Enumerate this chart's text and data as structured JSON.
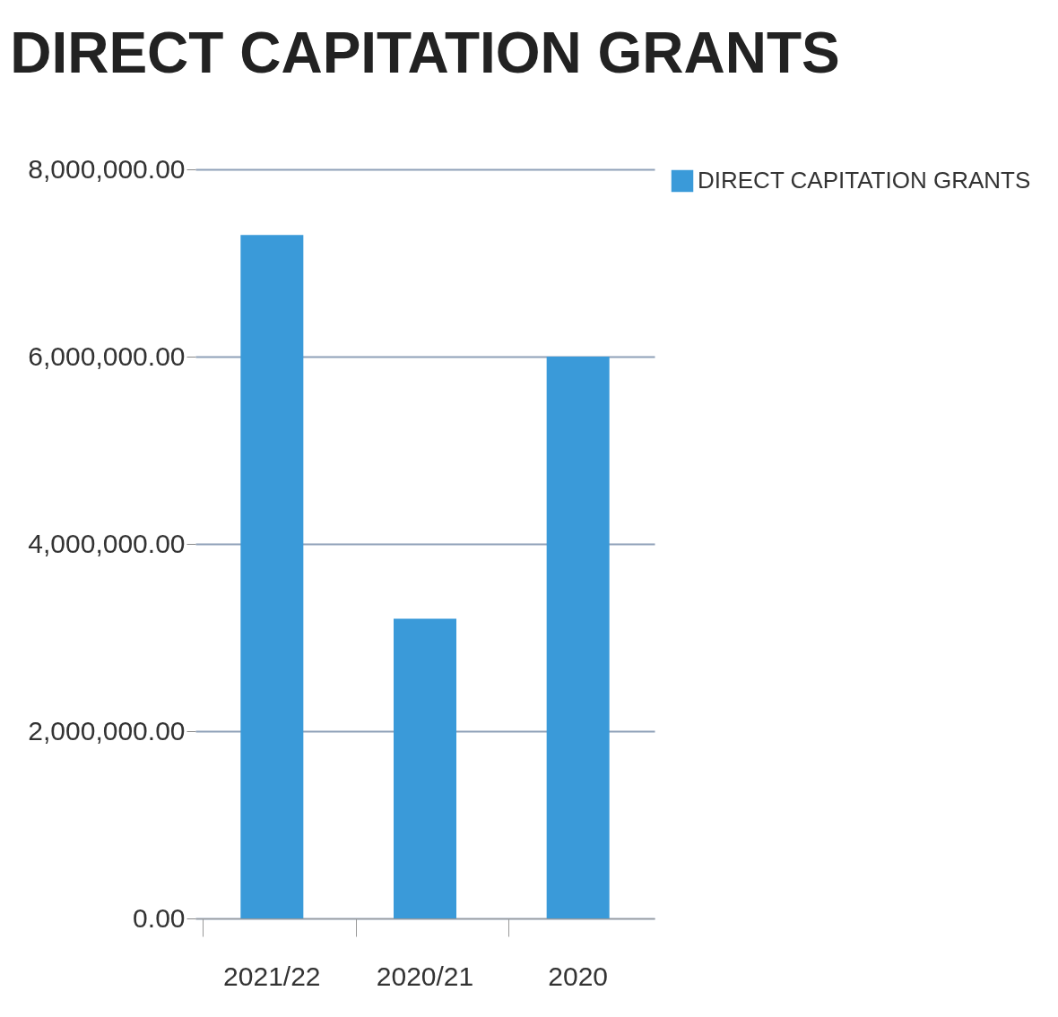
{
  "chart_data": {
    "type": "bar",
    "title": "DIRECT CAPITATION GRANTS",
    "categories": [
      "2021/22",
      "2020/21",
      "2020"
    ],
    "series": [
      {
        "name": "DIRECT CAPITATION GRANTS",
        "color": "#3a9ad9",
        "values": [
          7300000,
          3200000,
          6000000
        ]
      }
    ],
    "ylim": [
      0,
      8000000
    ],
    "yticks": [
      {
        "value": 0,
        "label": "0.00"
      },
      {
        "value": 2000000,
        "label": "2,000,000.00"
      },
      {
        "value": 4000000,
        "label": "4,000,000.00"
      },
      {
        "value": 6000000,
        "label": "6,000,000.00"
      },
      {
        "value": 8000000,
        "label": "8,000,000.00"
      }
    ],
    "grid": "y",
    "legend": "right"
  }
}
